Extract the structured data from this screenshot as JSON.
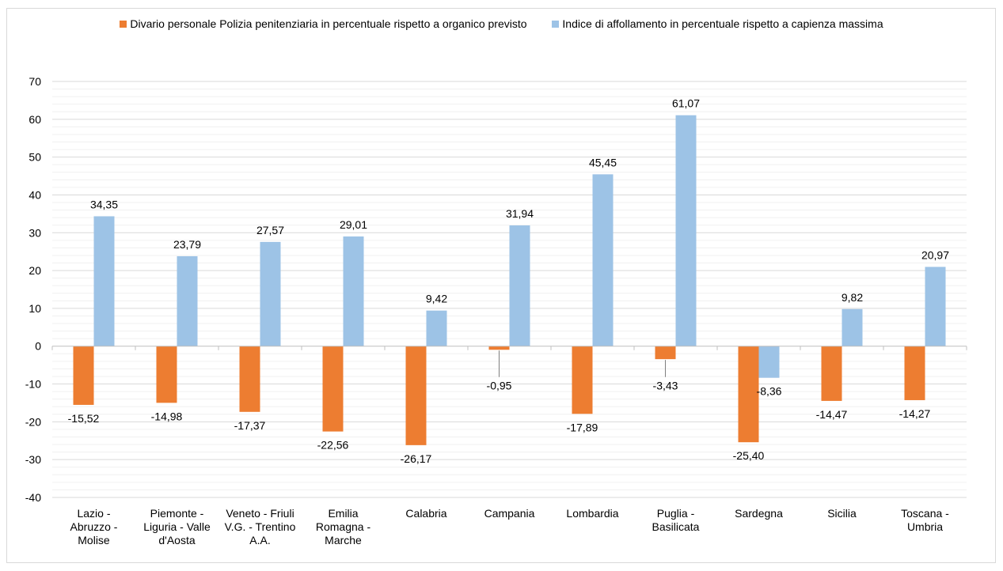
{
  "chart_data": {
    "type": "bar",
    "categories": [
      "Lazio - Abruzzo - Molise",
      "Piemonte - Liguria - Valle d'Aosta",
      "Veneto - Friuli V.G. - Trentino A.A.",
      "Emilia Romagna - Marche",
      "Calabria",
      "Campania",
      "Lombardia",
      "Puglia - Basilicata",
      "Sardegna",
      "Sicilia",
      "Toscana - Umbria"
    ],
    "category_lines": [
      [
        "Lazio -",
        "Abruzzo -",
        "Molise"
      ],
      [
        "Piemonte -",
        "Liguria - Valle",
        "d'Aosta"
      ],
      [
        "Veneto - Friuli",
        "V.G. - Trentino",
        "A.A."
      ],
      [
        "Emilia",
        "Romagna -",
        "Marche"
      ],
      [
        "Calabria"
      ],
      [
        "Campania"
      ],
      [
        "Lombardia"
      ],
      [
        "Puglia -",
        "Basilicata"
      ],
      [
        "Sardegna"
      ],
      [
        "Sicilia"
      ],
      [
        "Toscana -",
        "Umbria"
      ]
    ],
    "series": [
      {
        "name": "Divario personale Polizia penitenziaria in percentuale rispetto a organico previsto",
        "color": "#ed7d31",
        "values": [
          -15.52,
          -14.98,
          -17.37,
          -22.56,
          -26.17,
          -0.95,
          -17.89,
          -3.43,
          -25.4,
          -14.47,
          -14.27
        ],
        "labels": [
          "-15,52",
          "-14,98",
          "-17,37",
          "-22,56",
          "-26,17",
          "-0,95",
          "-17,89",
          "-3,43",
          "-25,40",
          "-14,47",
          "-14,27"
        ]
      },
      {
        "name": "Indice di affollamento in percentuale rispetto a capienza massima",
        "color": "#9dc3e6",
        "values": [
          34.35,
          23.79,
          27.57,
          29.01,
          9.42,
          31.94,
          45.45,
          61.07,
          -8.36,
          9.82,
          20.97
        ],
        "labels": [
          "34,35",
          "23,79",
          "27,57",
          "29,01",
          "9,42",
          "31,94",
          "45,45",
          "61,07",
          "-8,36",
          "9,82",
          "20,97"
        ]
      }
    ],
    "yticks": [
      70,
      60,
      50,
      40,
      30,
      20,
      10,
      0,
      -10,
      -20,
      -30,
      -40
    ],
    "ylim": [
      -40,
      70
    ],
    "grid": true,
    "legend_position": "top"
  }
}
